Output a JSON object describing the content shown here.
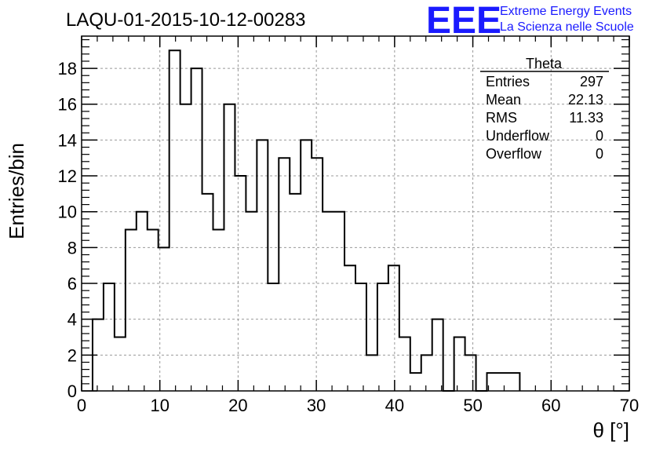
{
  "chart_data": {
    "type": "bar",
    "title": "LAQU-01-2015-10-12-00283",
    "xlabel": "θ [°]",
    "ylabel": "Entries/bin",
    "xlim": [
      0,
      70
    ],
    "ylim": [
      0,
      19.8
    ],
    "x_ticks": [
      0,
      10,
      20,
      30,
      40,
      50,
      60,
      70
    ],
    "y_ticks": [
      0,
      2,
      4,
      6,
      8,
      10,
      12,
      14,
      16,
      18
    ],
    "grid": true,
    "bin_width": 1.4,
    "bin_edges_start": 1.4,
    "values": [
      4,
      6,
      3,
      9,
      10,
      9,
      8,
      19,
      16,
      18,
      11,
      9,
      16,
      12,
      10,
      14,
      6,
      13,
      11,
      14,
      13,
      10,
      10,
      7,
      6,
      2,
      6,
      7,
      3,
      1,
      2,
      4,
      0,
      3,
      2,
      0,
      1,
      1,
      1
    ],
    "stats": {
      "name": "Theta",
      "rows": [
        {
          "label": "Entries",
          "value": "297"
        },
        {
          "label": "Mean",
          "value": "22.13"
        },
        {
          "label": "RMS",
          "value": "11.33"
        },
        {
          "label": "Underflow",
          "value": "0"
        },
        {
          "label": "Overflow",
          "value": "0"
        }
      ]
    }
  },
  "logo": {
    "mark": "EEE",
    "line1": "Extreme Energy Events",
    "line2": "La Scienza nelle Scuole",
    "color": "#1a1aff"
  }
}
